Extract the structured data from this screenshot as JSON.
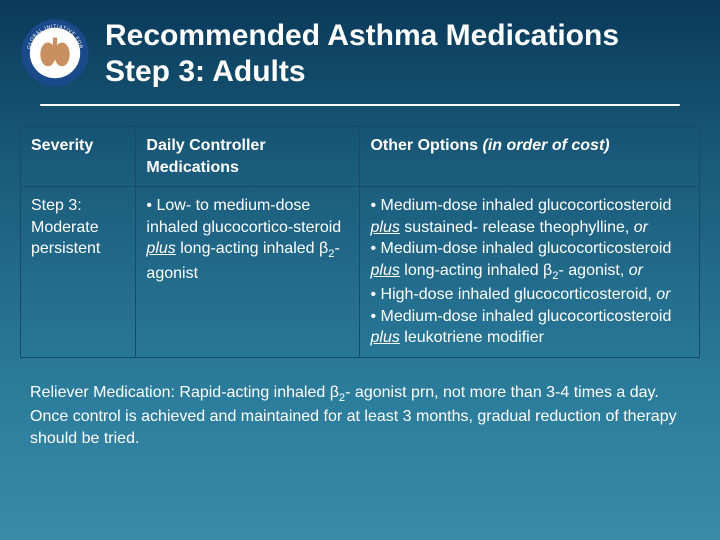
{
  "title": {
    "line1": "Recommended Asthma Medications",
    "line2": "Step 3:  Adults"
  },
  "logo": {
    "outer_text_top": "GLOBAL INITIATIVE FOR",
    "outer_text_bottom": "ASTHMA",
    "ring_color": "#1a4a8a",
    "inner_bg": "#ffffff",
    "lung_color": "#c89060"
  },
  "table": {
    "headers": {
      "severity": "Severity",
      "daily": "Daily Controller Medications",
      "other_prefix": "Other Options  ",
      "other_italic": "(in order of cost)"
    },
    "row": {
      "severity_line1": "Step 3:",
      "severity_line2": "Moderate persistent",
      "daily_html": "• Low- to medium-dose inhaled glucocortico-steroid <span class='italic underline'>plus</span> long-acting inhaled β<sub>2</sub>- agonist",
      "other_html": "• Medium-dose inhaled glucocorticosteroid <span class='italic underline'>plus</span> sustained- release theophylline, <span class='italic'>or</span><br>• Medium-dose inhaled glucocorticosteroid <span class='italic underline'>plus</span> long-acting inhaled β<sub>2</sub>- agonist, <span class='italic'>or</span><br>• High-dose inhaled glucocorticosteroid, <span class='italic'>or</span><br>• Medium-dose inhaled glucocorticosteroid <span class='italic underline'>plus</span> leukotrienе modifier"
    }
  },
  "footer_html": "Reliever Medication:  Rapid-acting inhaled β<sub>2</sub>- agonist prn, not more than 3-4 times a day.  Once control is achieved and maintained for at least 3 months, gradual reduction of therapy should be tried.",
  "colors": {
    "text": "#ffffff",
    "border": "#1a4a6a"
  }
}
